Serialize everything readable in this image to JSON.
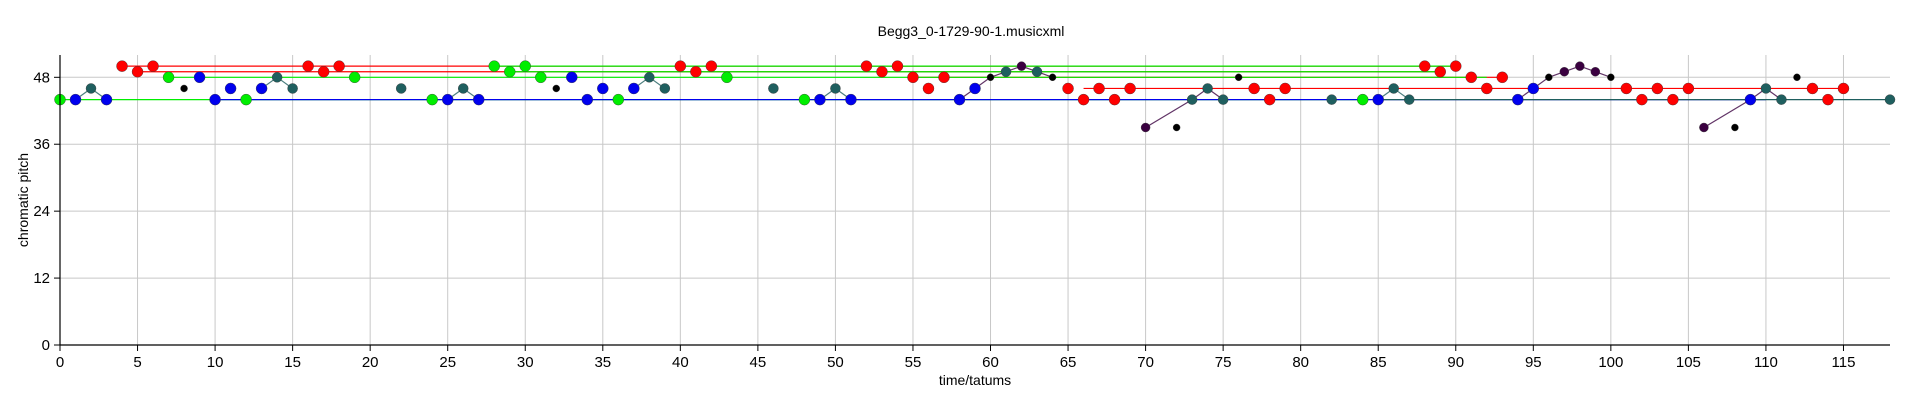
{
  "chart_data": {
    "type": "scatter",
    "title": "Begg3_0-1729-90-1.musicxml",
    "xlabel": "time/tatums",
    "ylabel": "chromatic pitch",
    "xlim": [
      0,
      118
    ],
    "ylim": [
      0,
      52
    ],
    "grid": true,
    "x_ticks": [
      "0",
      "5",
      "10",
      "15",
      "20",
      "25",
      "30",
      "35",
      "40",
      "45",
      "50",
      "55",
      "60",
      "65",
      "70",
      "75",
      "80",
      "85",
      "90",
      "95",
      "100",
      "105",
      "110",
      "115"
    ],
    "y_ticks": [
      "0",
      "12",
      "24",
      "36",
      "48"
    ],
    "colors": {
      "red": "#ff0000",
      "green": "#00ee00",
      "blue": "#0000ee",
      "teal": "#1f5f5f",
      "black": "#000000",
      "purple": "#3a0040",
      "grid": "#c8c8c8"
    },
    "sustain_lines": [
      {
        "color": "red",
        "pitch": 50,
        "x0": 4,
        "x1": 90
      },
      {
        "color": "red",
        "pitch": 49,
        "x0": 5,
        "x1": 89
      },
      {
        "color": "red",
        "pitch": 48,
        "x0": 55,
        "x1": 93
      },
      {
        "color": "red",
        "pitch": 46,
        "x0": 66,
        "x1": 115
      },
      {
        "color": "green",
        "pitch": 50,
        "x0": 28,
        "x1": 90
      },
      {
        "color": "green",
        "pitch": 49,
        "x0": 29,
        "x1": 89
      },
      {
        "color": "green",
        "pitch": 48,
        "x0": 7,
        "x1": 92
      },
      {
        "color": "green",
        "pitch": 44,
        "x0": 0,
        "x1": 84
      },
      {
        "color": "blue",
        "pitch": 44,
        "x0": 10,
        "x1": 110
      },
      {
        "color": "teal",
        "pitch": 44,
        "x0": 85,
        "x1": 118
      }
    ],
    "series": [
      {
        "name": "green",
        "color": "green",
        "points": [
          [
            0,
            44
          ],
          [
            7,
            48
          ],
          [
            12,
            44
          ],
          [
            19,
            48
          ],
          [
            24,
            44
          ],
          [
            28,
            50
          ],
          [
            29,
            49
          ],
          [
            30,
            50
          ],
          [
            31,
            48
          ],
          [
            36,
            44
          ],
          [
            43,
            48
          ],
          [
            48,
            44
          ],
          [
            84,
            44
          ]
        ]
      },
      {
        "name": "red",
        "color": "red",
        "points": [
          [
            4,
            50
          ],
          [
            5,
            49
          ],
          [
            6,
            50
          ],
          [
            16,
            50
          ],
          [
            17,
            49
          ],
          [
            18,
            50
          ],
          [
            40,
            50
          ],
          [
            41,
            49
          ],
          [
            42,
            50
          ],
          [
            52,
            50
          ],
          [
            53,
            49
          ],
          [
            54,
            50
          ],
          [
            55,
            48
          ],
          [
            56,
            46
          ],
          [
            57,
            48
          ],
          [
            65,
            46
          ],
          [
            66,
            44
          ],
          [
            67,
            46
          ],
          [
            68,
            44
          ],
          [
            69,
            46
          ],
          [
            77,
            46
          ],
          [
            78,
            44
          ],
          [
            79,
            46
          ],
          [
            88,
            50
          ],
          [
            89,
            49
          ],
          [
            90,
            50
          ],
          [
            91,
            48
          ],
          [
            92,
            46
          ],
          [
            93,
            48
          ],
          [
            101,
            46
          ],
          [
            102,
            44
          ],
          [
            103,
            46
          ],
          [
            104,
            44
          ],
          [
            105,
            46
          ],
          [
            113,
            46
          ],
          [
            114,
            44
          ],
          [
            115,
            46
          ]
        ]
      },
      {
        "name": "blue",
        "color": "blue",
        "points": [
          [
            1,
            44
          ],
          [
            3,
            44
          ],
          [
            9,
            48
          ],
          [
            10,
            44
          ],
          [
            11,
            46
          ],
          [
            13,
            46
          ],
          [
            25,
            44
          ],
          [
            27,
            44
          ],
          [
            33,
            48
          ],
          [
            34,
            44
          ],
          [
            35,
            46
          ],
          [
            37,
            46
          ],
          [
            49,
            44
          ],
          [
            51,
            44
          ],
          [
            58,
            44
          ],
          [
            59,
            46
          ],
          [
            85,
            44
          ],
          [
            94,
            44
          ],
          [
            95,
            46
          ],
          [
            109,
            44
          ]
        ]
      },
      {
        "name": "teal",
        "color": "teal",
        "points": [
          [
            2,
            46
          ],
          [
            14,
            48
          ],
          [
            15,
            46
          ],
          [
            22,
            46
          ],
          [
            26,
            46
          ],
          [
            38,
            48
          ],
          [
            39,
            46
          ],
          [
            46,
            46
          ],
          [
            50,
            46
          ],
          [
            61,
            49
          ],
          [
            63,
            49
          ],
          [
            73,
            44
          ],
          [
            74,
            46
          ],
          [
            75,
            44
          ],
          [
            82,
            44
          ],
          [
            86,
            46
          ],
          [
            87,
            44
          ],
          [
            110,
            46
          ],
          [
            111,
            44
          ],
          [
            118,
            44
          ]
        ]
      },
      {
        "name": "black",
        "color": "black",
        "points": [
          [
            8,
            46
          ],
          [
            32,
            46
          ],
          [
            60,
            48
          ],
          [
            64,
            48
          ],
          [
            72,
            39
          ],
          [
            76,
            48
          ],
          [
            96,
            48
          ],
          [
            100,
            48
          ],
          [
            108,
            39
          ],
          [
            112,
            48
          ]
        ]
      },
      {
        "name": "purple",
        "color": "purple",
        "points": [
          [
            62,
            50
          ],
          [
            70,
            39
          ],
          [
            97,
            49
          ],
          [
            98,
            50
          ],
          [
            99,
            49
          ],
          [
            106,
            39
          ]
        ]
      }
    ],
    "connectors": [
      {
        "color": "teal",
        "points": [
          [
            1,
            44
          ],
          [
            2,
            46
          ],
          [
            3,
            44
          ]
        ]
      },
      {
        "color": "teal",
        "points": [
          [
            13,
            46
          ],
          [
            14,
            48
          ],
          [
            15,
            46
          ]
        ]
      },
      {
        "color": "teal",
        "points": [
          [
            25,
            44
          ],
          [
            26,
            46
          ],
          [
            27,
            44
          ]
        ]
      },
      {
        "color": "teal",
        "points": [
          [
            37,
            46
          ],
          [
            38,
            48
          ],
          [
            39,
            46
          ]
        ]
      },
      {
        "color": "teal",
        "points": [
          [
            49,
            44
          ],
          [
            50,
            46
          ],
          [
            51,
            44
          ]
        ]
      },
      {
        "color": "purple",
        "points": [
          [
            58,
            44
          ],
          [
            59,
            46
          ],
          [
            60,
            48
          ],
          [
            61,
            49
          ],
          [
            62,
            50
          ],
          [
            63,
            49
          ],
          [
            64,
            48
          ]
        ]
      },
      {
        "color": "purple",
        "points": [
          [
            70,
            39
          ],
          [
            73,
            44
          ],
          [
            74,
            46
          ],
          [
            75,
            44
          ]
        ]
      },
      {
        "color": "teal",
        "points": [
          [
            85,
            44
          ],
          [
            86,
            46
          ],
          [
            87,
            44
          ]
        ]
      },
      {
        "color": "purple",
        "points": [
          [
            94,
            44
          ],
          [
            95,
            46
          ],
          [
            96,
            48
          ],
          [
            97,
            49
          ],
          [
            98,
            50
          ],
          [
            99,
            49
          ],
          [
            100,
            48
          ]
        ]
      },
      {
        "color": "purple",
        "points": [
          [
            106,
            39
          ],
          [
            109,
            44
          ],
          [
            110,
            46
          ],
          [
            111,
            44
          ]
        ]
      }
    ]
  }
}
